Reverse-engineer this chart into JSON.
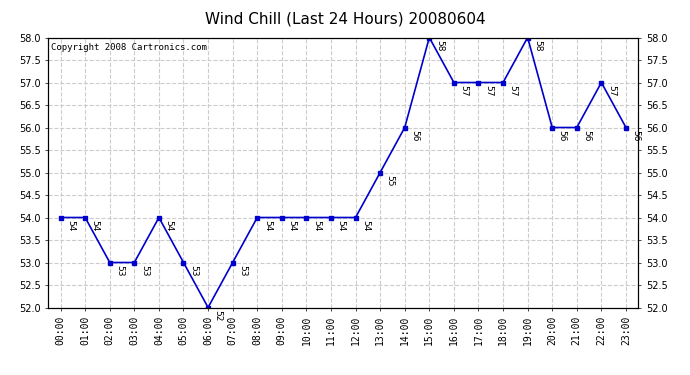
{
  "title": "Wind Chill (Last 24 Hours) 20080604",
  "copyright_text": "Copyright 2008 Cartronics.com",
  "hours": [
    "00:00",
    "01:00",
    "02:00",
    "03:00",
    "04:00",
    "05:00",
    "06:00",
    "07:00",
    "08:00",
    "09:00",
    "10:00",
    "11:00",
    "12:00",
    "13:00",
    "14:00",
    "15:00",
    "16:00",
    "17:00",
    "18:00",
    "19:00",
    "20:00",
    "21:00",
    "22:00",
    "23:00"
  ],
  "values": [
    54,
    54,
    53,
    53,
    54,
    53,
    52,
    53,
    54,
    54,
    54,
    54,
    54,
    55,
    56,
    58,
    57,
    57,
    57,
    58,
    56,
    56,
    57,
    56
  ],
  "ylim": [
    52.0,
    58.0
  ],
  "ytick_step": 0.5,
  "line_color": "#0000cc",
  "marker_color": "#0000cc",
  "marker_style": "s",
  "marker_size": 3,
  "grid_color": "#cccccc",
  "grid_style": "--",
  "background_color": "#ffffff",
  "title_fontsize": 11,
  "label_fontsize": 6.5,
  "tick_fontsize": 7,
  "copyright_fontsize": 6.5
}
